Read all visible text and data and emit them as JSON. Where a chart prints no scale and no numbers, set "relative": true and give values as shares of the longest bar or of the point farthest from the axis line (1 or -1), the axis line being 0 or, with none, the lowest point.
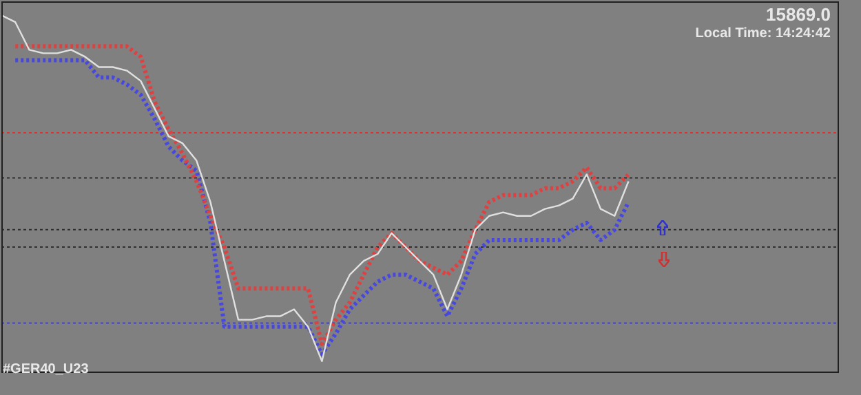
{
  "chart_data": {
    "type": "line",
    "relative": true,
    "legend": false,
    "categories": [
      null,
      null,
      null,
      null,
      null,
      null,
      null,
      null,
      null,
      null,
      null,
      null,
      null,
      null,
      null,
      null,
      null,
      null,
      null,
      null,
      null,
      null,
      null,
      null,
      null,
      null,
      null,
      null,
      null,
      null,
      null,
      null,
      null,
      null,
      null,
      null,
      null,
      null,
      null,
      null,
      null,
      null,
      null,
      null,
      null,
      null,
      null,
      null,
      null,
      null,
      null,
      null,
      null,
      null,
      null,
      null,
      null,
      null,
      null,
      null,
      null
    ],
    "series": [
      {
        "color": "#e0e0e0",
        "values": [
          1,
          0.98,
          0.9,
          0.89,
          0.89,
          0.9,
          0.88,
          0.85,
          0.85,
          0.84,
          0.81,
          0.73,
          0.65,
          0.63,
          0.58,
          0.46,
          0.29,
          0.12,
          0.12,
          0.13,
          0.13,
          0.15,
          0.1,
          0,
          0.17,
          0.25,
          0.29,
          0.31,
          0.37,
          0.33,
          0.29,
          0.25,
          0.15,
          0.25,
          0.38,
          0.42,
          0.43,
          0.42,
          0.42,
          0.44,
          0.45,
          0.47,
          0.54,
          0.44,
          0.42,
          0.52,
          null,
          null,
          null,
          null,
          null,
          null,
          null,
          null,
          null,
          null,
          null,
          null,
          null,
          null,
          null
        ]
      },
      {
        "color": "#e04040",
        "line_style": "dotted",
        "values": [
          null,
          0.91,
          0.91,
          0.91,
          0.91,
          0.91,
          0.91,
          0.91,
          0.91,
          0.91,
          0.88,
          0.75,
          0.67,
          0.6,
          0.52,
          0.42,
          0.33,
          0.21,
          0.21,
          0.21,
          0.21,
          0.21,
          0.21,
          0.05,
          0.12,
          0.17,
          0.25,
          0.33,
          0.37,
          0.33,
          0.29,
          0.27,
          0.25,
          0.29,
          0.38,
          0.46,
          0.48,
          0.48,
          0.48,
          0.5,
          0.5,
          0.52,
          0.56,
          0.5,
          0.5,
          0.54,
          null,
          null,
          null,
          null,
          null,
          null,
          null,
          null,
          null,
          null,
          null,
          null,
          null,
          null,
          null
        ]
      },
      {
        "color": "#4848e0",
        "line_style": "dotted",
        "values": [
          null,
          0.87,
          0.87,
          0.87,
          0.87,
          0.87,
          0.87,
          0.82,
          0.82,
          0.8,
          0.77,
          0.7,
          0.62,
          0.58,
          0.55,
          0.4,
          0.1,
          0.1,
          0.1,
          0.1,
          0.1,
          0.1,
          0.1,
          0.02,
          0.08,
          0.15,
          0.19,
          0.23,
          0.25,
          0.25,
          0.23,
          0.21,
          0.13,
          0.21,
          0.31,
          0.35,
          0.35,
          0.35,
          0.35,
          0.35,
          0.35,
          0.38,
          0.4,
          0.35,
          0.38,
          0.46,
          null,
          null,
          null,
          null,
          null,
          null,
          null,
          null,
          null,
          null,
          null,
          null,
          null,
          null,
          null
        ]
      }
    ],
    "ref_lines": [
      {
        "axis": "y",
        "value": 0.66,
        "color": "#e03030",
        "line_style": "dotted"
      },
      {
        "axis": "y",
        "value": 0.53,
        "color": "#303030",
        "line_style": "dotted"
      },
      {
        "axis": "y",
        "value": 0.38,
        "color": "#303030",
        "line_style": "dotted"
      },
      {
        "axis": "y",
        "value": 0.33,
        "color": "#303030",
        "line_style": "dotted"
      },
      {
        "axis": "y",
        "value": 0.11,
        "color": "#4040e0",
        "line_style": "dotted"
      }
    ],
    "annotations": [
      "15869.0",
      "Local Time: 14:24:42",
      "#GER40_U23"
    ]
  }
}
